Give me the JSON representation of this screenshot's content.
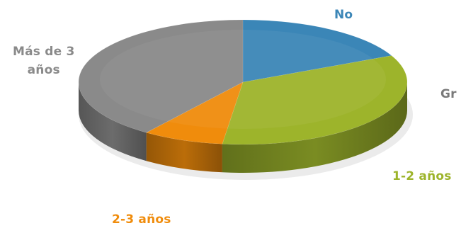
{
  "chart_data": {
    "type": "pie",
    "title": "",
    "slices": [
      {
        "label": "No",
        "value": 18,
        "color": "#3B86B7"
      },
      {
        "label": "1-2 años",
        "value": 34,
        "color": "#9DB42B"
      },
      {
        "label": "2-3 años",
        "value": 8,
        "color": "#F08C0C"
      },
      {
        "label": "Más de 3 años",
        "value": 40,
        "color": "#8A8A8A"
      }
    ],
    "label_colors": {
      "No": "#3B86B7",
      "1-2 años": "#9DB42B",
      "2-3 años": "#F08C0C",
      "Más de 3 años": "#8A8A8A"
    },
    "labels": {
      "no": "No",
      "one_two": "1-2 años",
      "two_three": "2-3 años",
      "mas_line1": "Más de 3",
      "mas_line2": "años"
    },
    "cropped_text": "Gr"
  }
}
